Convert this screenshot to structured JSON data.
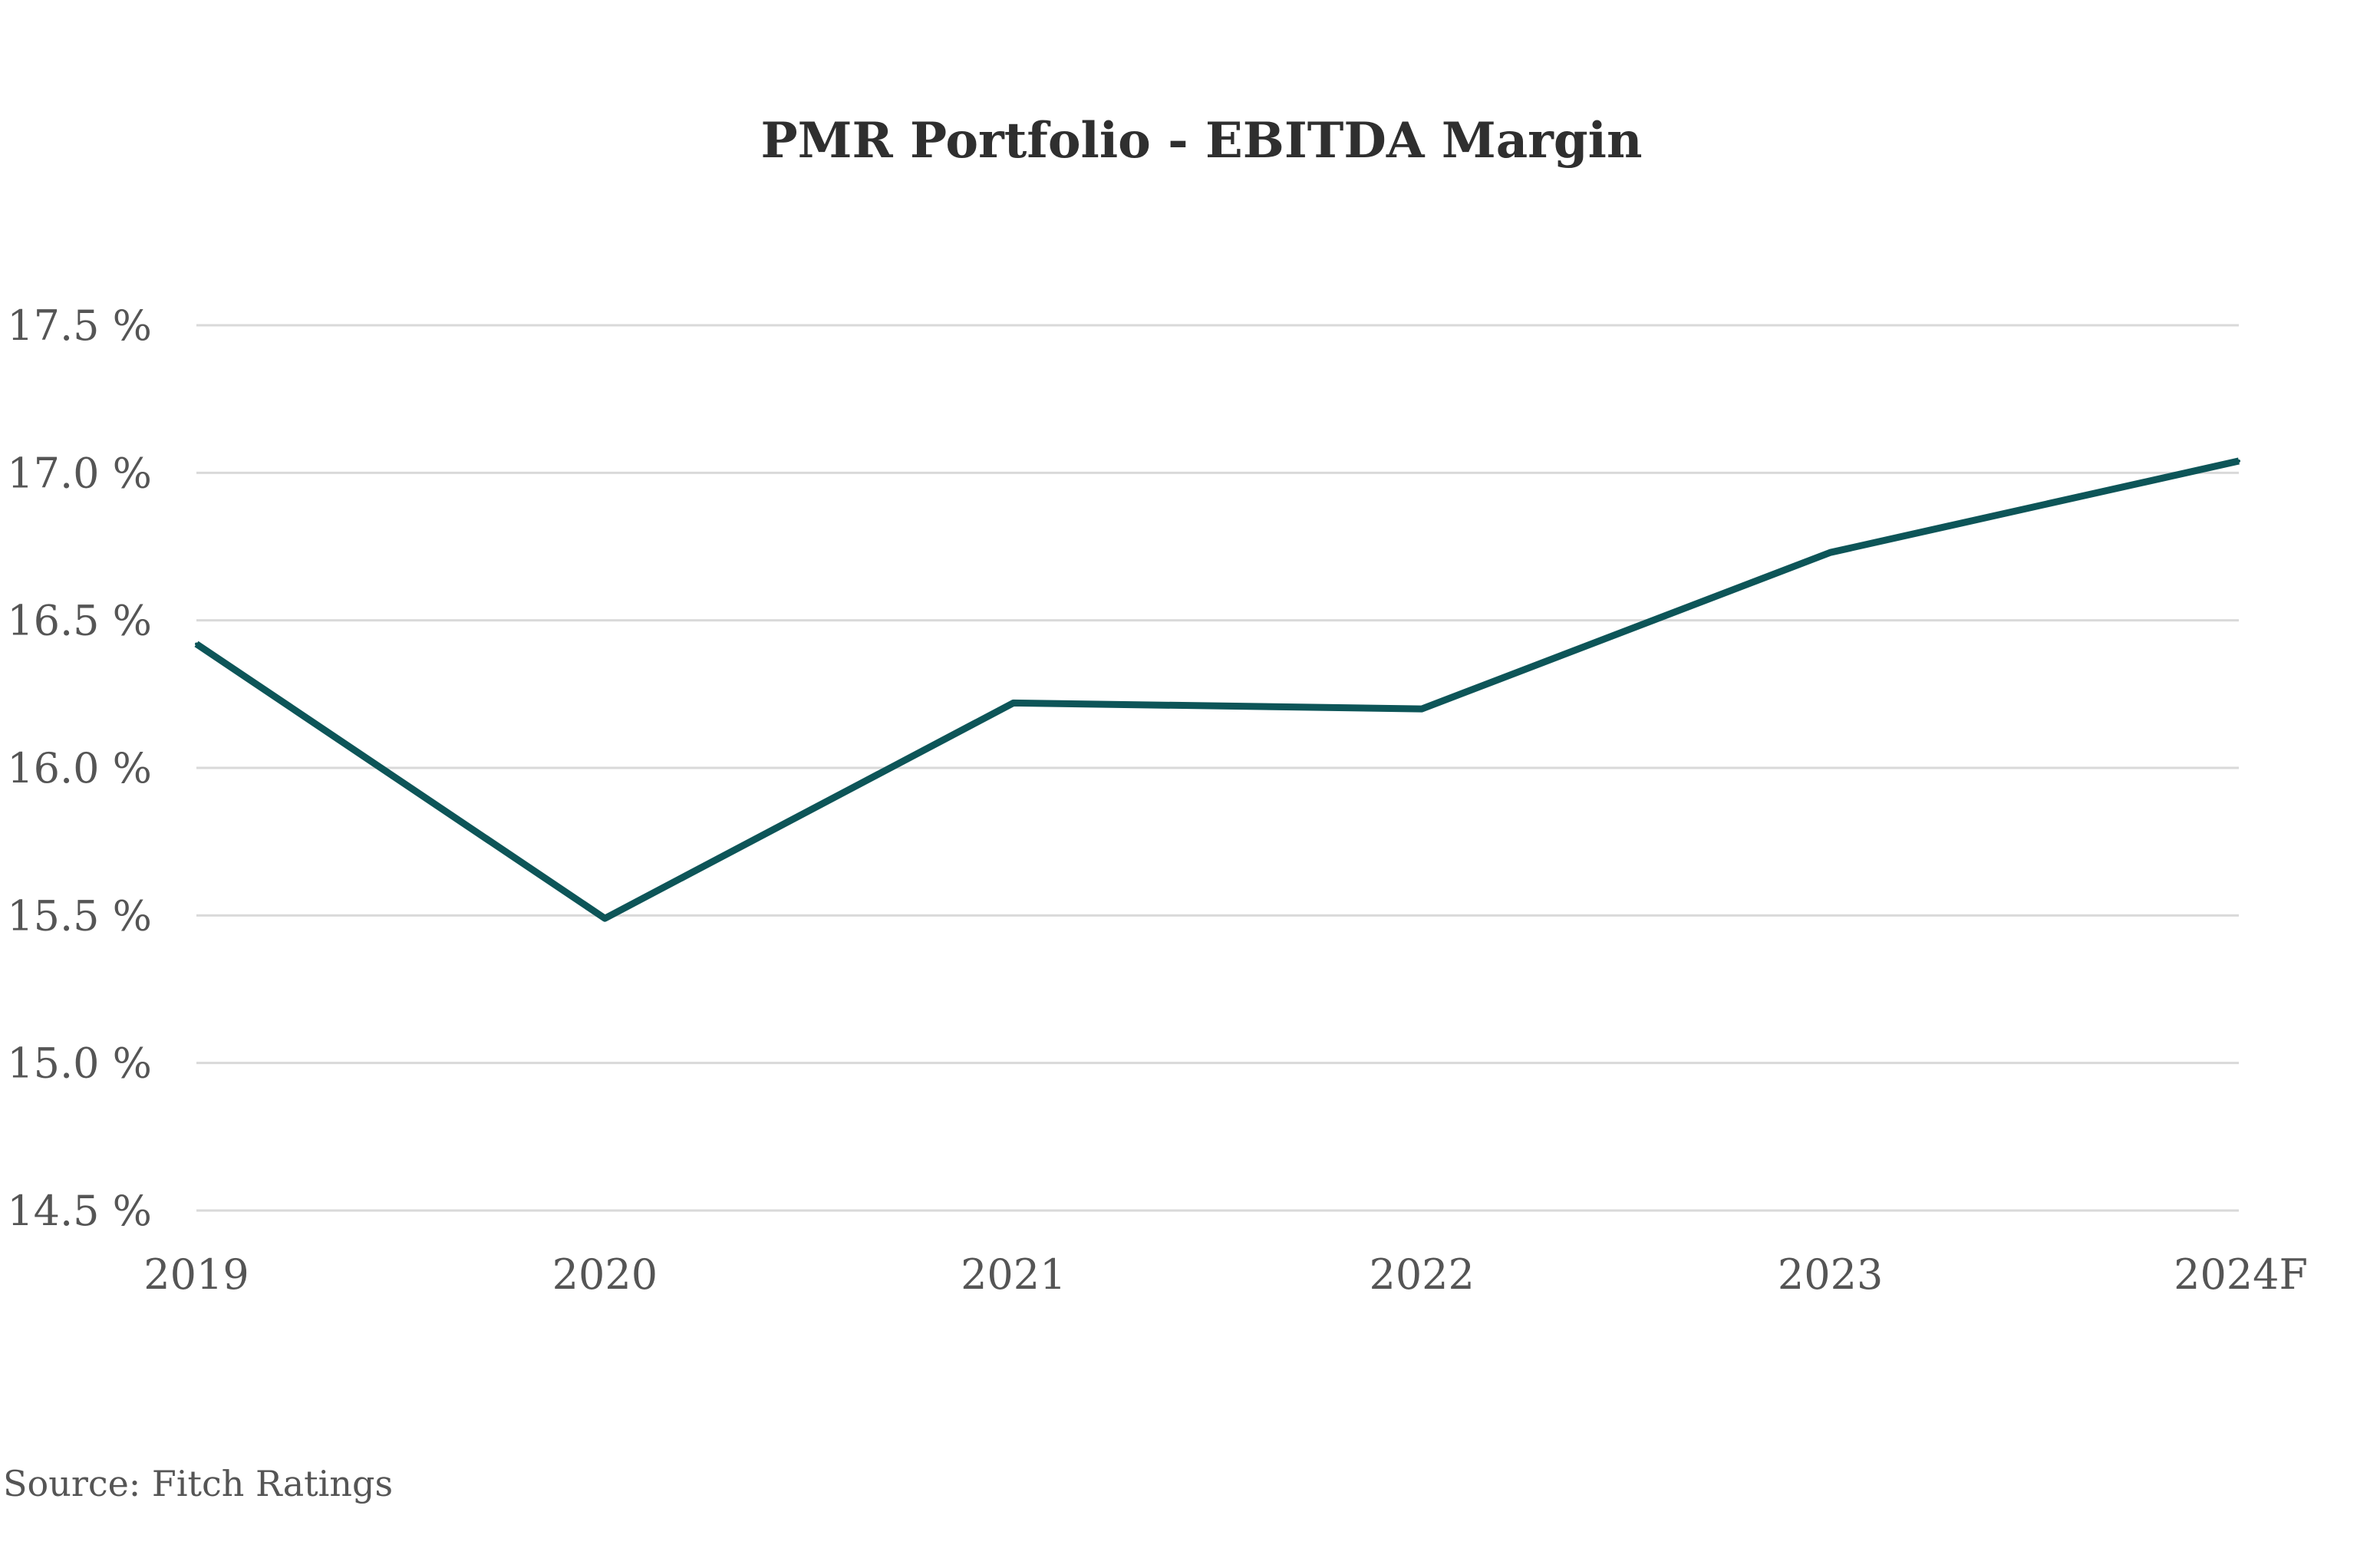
{
  "chart_data": {
    "type": "line",
    "title": "PMR Portfolio - EBITDA Margin",
    "xlabel": "",
    "ylabel": "",
    "categories": [
      "2019",
      "2020",
      "2021",
      "2022",
      "2023",
      "2024F"
    ],
    "series": [
      {
        "values": [
          16.42,
          15.49,
          16.22,
          16.2,
          16.73,
          17.04
        ],
        "color": "#0d5558"
      }
    ],
    "ylim": [
      14.5,
      17.5
    ],
    "yticks": [
      14.5,
      15.0,
      15.5,
      16.0,
      16.5,
      17.0,
      17.5
    ],
    "ytick_labels": [
      "14.5 %",
      "15.0 %",
      "15.5 %",
      "16.0 %",
      "16.5 %",
      "17.0 %",
      "17.5 %"
    ],
    "grid": true,
    "gridline_color": "#d9d9d9",
    "legend": "none"
  },
  "source": "Source: Fitch Ratings"
}
